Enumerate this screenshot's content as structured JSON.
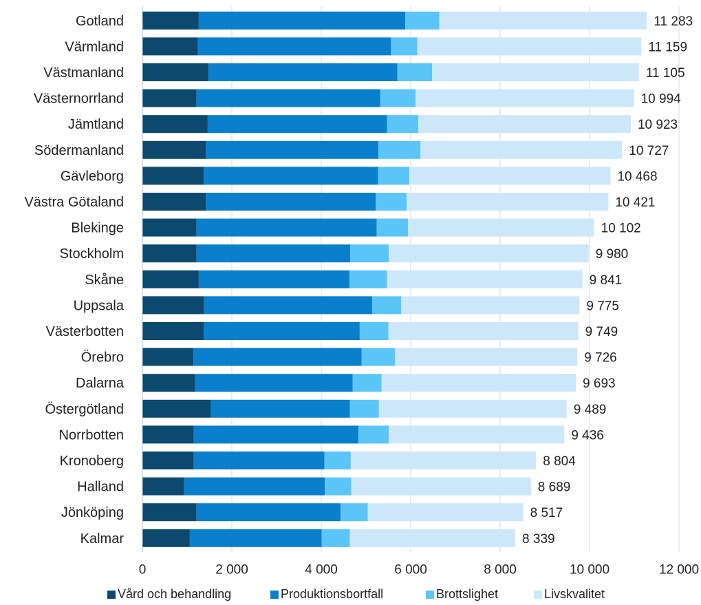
{
  "chart_data": {
    "type": "bar",
    "orientation": "horizontal",
    "stacked": true,
    "categories": [
      "Gotland",
      "Värmland",
      "Västmanland",
      "Västernorrland",
      "Jämtland",
      "Södermanland",
      "Gävleborg",
      "Västra Götaland",
      "Blekinge",
      "Stockholm",
      "Skåne",
      "Uppsala",
      "Västerbotten",
      "Örebro",
      "Dalarna",
      "Östergötland",
      "Norrbotten",
      "Kronoberg",
      "Halland",
      "Jönköping",
      "Kalmar"
    ],
    "series": [
      {
        "name": "Vård och behandling",
        "color": "#0B4A6E",
        "values": [
          1260,
          1240,
          1480,
          1210,
          1460,
          1420,
          1370,
          1420,
          1210,
          1210,
          1260,
          1380,
          1370,
          1140,
          1180,
          1530,
          1150,
          1150,
          930,
          1210,
          1060
        ]
      },
      {
        "name": "Produktionsbortfall",
        "color": "#0A7FCC",
        "values": [
          4620,
          4320,
          4220,
          4110,
          4010,
          3860,
          3900,
          3800,
          4030,
          3440,
          3370,
          3760,
          3490,
          3760,
          3520,
          3110,
          3680,
          2920,
          3150,
          3220,
          2950
        ]
      },
      {
        "name": "Brottslighet",
        "color": "#5BC5F7",
        "values": [
          760,
          590,
          780,
          790,
          700,
          940,
          700,
          690,
          700,
          860,
          840,
          650,
          640,
          750,
          650,
          650,
          680,
          590,
          590,
          610,
          630
        ]
      },
      {
        "name": "Livskvalitet",
        "color": "#CDE7FA",
        "values": [
          4643,
          5009,
          4625,
          4884,
          4753,
          4507,
          4498,
          4511,
          4162,
          4470,
          4371,
          3985,
          4249,
          4076,
          4343,
          4199,
          3926,
          4144,
          4019,
          3477,
          3699
        ]
      }
    ],
    "totals": [
      "11 283",
      "11 159",
      "11 105",
      "10 994",
      "10 923",
      "10 727",
      "10 468",
      "10 421",
      "10 102",
      "9 980",
      "9 841",
      "9 775",
      "9 749",
      "9 726",
      "9 693",
      "9 489",
      "9 436",
      "8 804",
      "8 689",
      "8 517",
      "8 339"
    ],
    "xlim": [
      0,
      12000
    ],
    "xticks": [
      0,
      2000,
      4000,
      6000,
      8000,
      10000,
      12000
    ],
    "xtick_labels": [
      "0",
      "2 000",
      "4 000",
      "6 000",
      "8 000",
      "10 000",
      "12 000"
    ],
    "grid": "vertical",
    "legend_position": "bottom"
  }
}
